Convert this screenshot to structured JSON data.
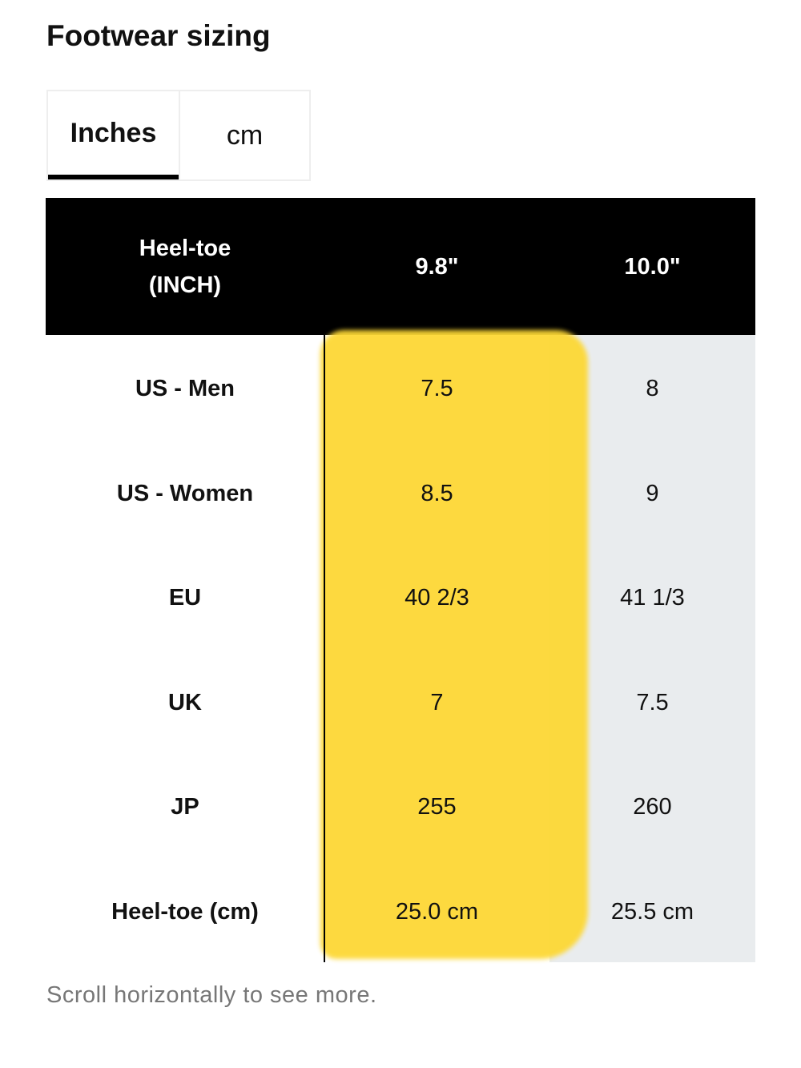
{
  "header": {
    "title": "Footwear sizing"
  },
  "tabs": [
    "Inches",
    "cm"
  ],
  "table": {
    "header": [
      "Heel-toe (INCH)",
      "9.8\"",
      "10.0\""
    ],
    "rows": [
      [
        "US - Men",
        "7.5",
        "8"
      ],
      [
        "US - Women",
        "8.5",
        "9"
      ],
      [
        "EU",
        "40 2/3",
        "41 1/3"
      ],
      [
        "UK",
        "7",
        "7.5"
      ],
      [
        "JP",
        "255",
        "260"
      ],
      [
        "Heel-toe (cm)",
        "25.0 cm",
        "25.5 cm"
      ]
    ]
  },
  "footnote": "Scroll horizontally to see more."
}
